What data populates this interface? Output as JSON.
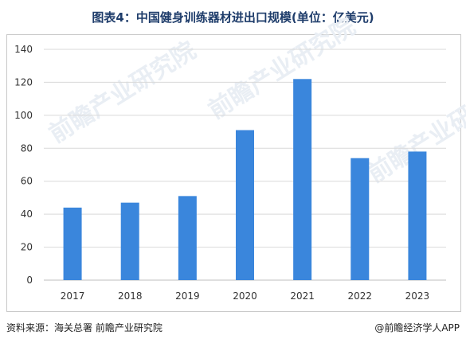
{
  "title": "图表4：中国健身训练器材进出口规模(单位：亿美元)",
  "source": "资料来源：海关总署 前瞻产业研究院",
  "brand": "@前瞻经济学人APP",
  "watermark": "前瞻产业研究院",
  "colors": {
    "bar": "#3a86dc",
    "grid": "#d9d9d9",
    "axis_text": "#333333"
  },
  "chart_data": {
    "type": "bar",
    "title": "图表4：中国健身训练器材进出口规模(单位：亿美元)",
    "xlabel": "",
    "ylabel": "",
    "categories": [
      "2017",
      "2018",
      "2019",
      "2020",
      "2021",
      "2022",
      "2023"
    ],
    "values": [
      44,
      47,
      51,
      91,
      122,
      74,
      78
    ],
    "ylim": [
      0,
      140
    ],
    "yticks": [
      0,
      20,
      40,
      60,
      80,
      100,
      120,
      140
    ],
    "grid": true,
    "legend": "none"
  }
}
